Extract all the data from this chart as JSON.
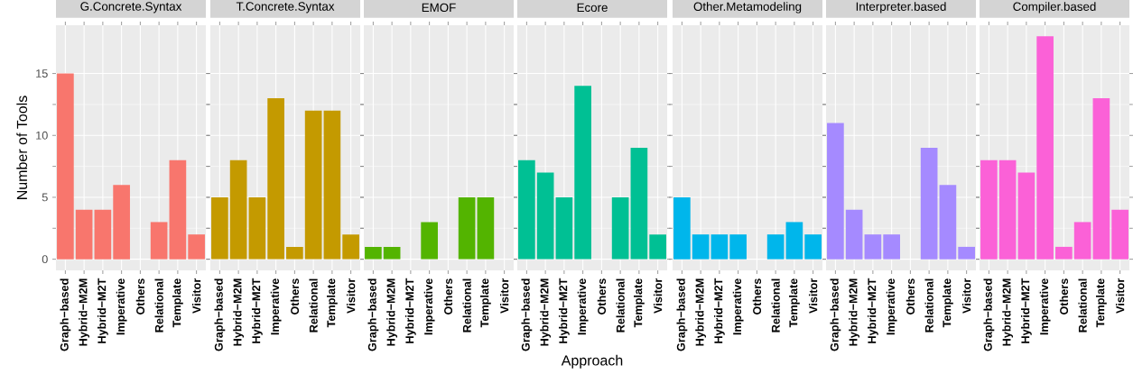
{
  "chart_data": [
    {
      "type": "bar",
      "title": "G.Concrete.Syntax",
      "ylabel": "Number of Tools",
      "categories": [
        "Graph−based",
        "Hybrid−M2M",
        "Hybrid−M2T",
        "Imperative",
        "Others",
        "Relational",
        "Template",
        "Visitor"
      ],
      "values": [
        15,
        4,
        4,
        6,
        0,
        3,
        8,
        2
      ],
      "color": "#f8766d",
      "ylim": [
        -0.9,
        18.9
      ],
      "yticks": [
        0,
        5,
        10,
        15
      ],
      "grid": true
    },
    {
      "type": "bar",
      "title": "T.Concrete.Syntax",
      "categories": [
        "Graph−based",
        "Hybrid−M2M",
        "Hybrid−M2T",
        "Imperative",
        "Others",
        "Relational",
        "Template",
        "Visitor"
      ],
      "values": [
        5,
        8,
        5,
        13,
        1,
        12,
        12,
        2
      ],
      "color": "#c49a00",
      "ylim": [
        -0.9,
        18.9
      ],
      "yticks": [
        0,
        5,
        10,
        15
      ],
      "grid": true,
      "tick_labels": "x"
    },
    {
      "type": "bar",
      "title": "EMOF",
      "categories": [
        "Graph−based",
        "Hybrid−M2M",
        "Hybrid−M2T",
        "Imperative",
        "Others",
        "Relational",
        "Template",
        "Visitor"
      ],
      "values": [
        1,
        1,
        0,
        3,
        0,
        5,
        5,
        0
      ],
      "color": "#53b400",
      "ylim": [
        -0.9,
        18.9
      ],
      "yticks": [
        0,
        5,
        10,
        15
      ],
      "grid": true,
      "tick_labels": "x"
    },
    {
      "type": "bar",
      "title": "Ecore",
      "xlabel": "Approach",
      "categories": [
        "Graph−based",
        "Hybrid−M2M",
        "Hybrid−M2T",
        "Imperative",
        "Others",
        "Relational",
        "Template",
        "Visitor"
      ],
      "values": [
        8,
        7,
        5,
        14,
        0,
        5,
        9,
        2
      ],
      "color": "#00c094",
      "ylim": [
        -0.9,
        18.9
      ],
      "yticks": [
        0,
        5,
        10,
        15
      ],
      "grid": true,
      "tick_labels": "x"
    },
    {
      "type": "bar",
      "title": "Other.Metamodeling",
      "categories": [
        "Graph−based",
        "Hybrid−M2M",
        "Hybrid−M2T",
        "Imperative",
        "Others",
        "Relational",
        "Template",
        "Visitor"
      ],
      "values": [
        5,
        2,
        2,
        2,
        0,
        2,
        3,
        2
      ],
      "color": "#00b6eb",
      "ylim": [
        -0.9,
        18.9
      ],
      "yticks": [
        0,
        5,
        10,
        15
      ],
      "grid": true,
      "tick_labels": "x"
    },
    {
      "type": "bar",
      "title": "Interpreter.based",
      "categories": [
        "Graph−based",
        "Hybrid−M2M",
        "Hybrid−M2T",
        "Imperative",
        "Others",
        "Relational",
        "Template",
        "Visitor"
      ],
      "values": [
        11,
        4,
        2,
        2,
        0,
        9,
        6,
        1
      ],
      "color": "#a58aff",
      "ylim": [
        -0.9,
        18.9
      ],
      "yticks": [
        0,
        5,
        10,
        15
      ],
      "grid": true,
      "tick_labels": "x"
    },
    {
      "type": "bar",
      "title": "Compiler.based",
      "categories": [
        "Graph−based",
        "Hybrid−M2M",
        "Hybrid−M2T",
        "Imperative",
        "Others",
        "Relational",
        "Template",
        "Visitor"
      ],
      "values": [
        8,
        8,
        7,
        18,
        1,
        3,
        13,
        4
      ],
      "color": "#fb61d7",
      "ylim": [
        -0.9,
        18.9
      ],
      "yticks": [
        0,
        5,
        10,
        15
      ],
      "grid": true,
      "tick_labels": "x"
    }
  ]
}
